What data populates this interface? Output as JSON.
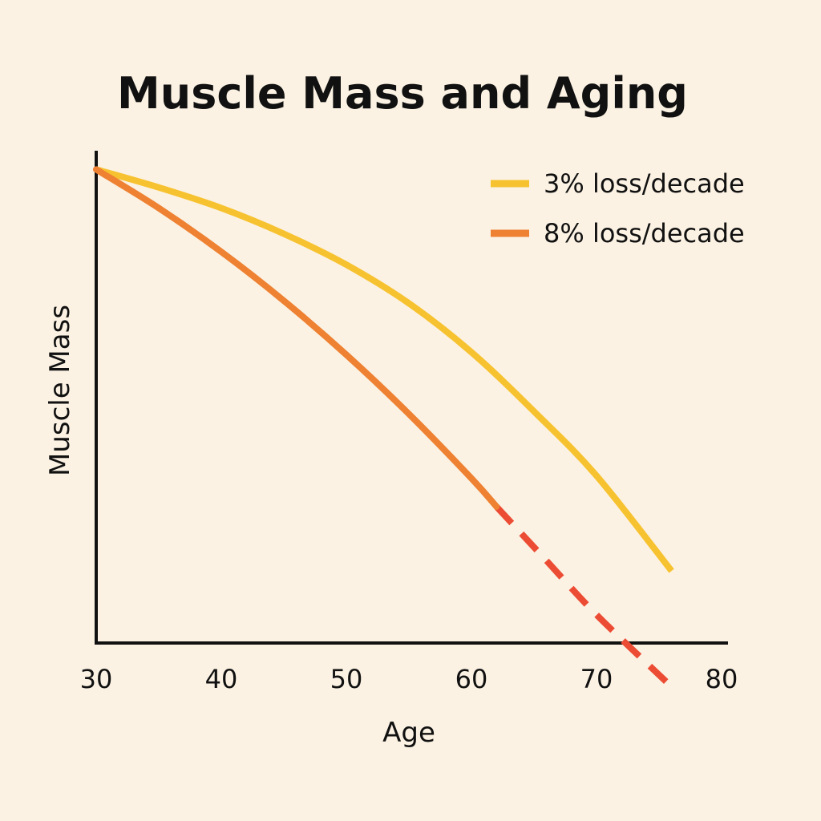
{
  "chart_data": {
    "type": "line",
    "title": "Muscle Mass and Aging",
    "xlabel": "Age",
    "ylabel": "Muscle Mass",
    "xlim": [
      30,
      80
    ],
    "ylim": [
      0,
      100
    ],
    "xticks": [
      "30",
      "40",
      "50",
      "60",
      "70",
      "80"
    ],
    "grid": false,
    "legend_position": "top-right",
    "series": [
      {
        "name": "3% loss/decade",
        "color": "#F7C230",
        "style": "solid",
        "x": [
          30,
          35,
          40,
          45,
          50,
          55,
          60,
          65,
          70,
          76
        ],
        "y": [
          92,
          88.5,
          84.5,
          79.5,
          73.5,
          66,
          56.5,
          45,
          32.5,
          14
        ]
      },
      {
        "name": "8% loss/decade",
        "color": "#EE8132",
        "dash_color": "#EC4C33",
        "style": "solid-then-dashed",
        "dash_from_x": 62,
        "x": [
          30,
          35,
          40,
          45,
          50,
          55,
          60,
          62,
          66,
          70,
          76
        ],
        "y": [
          92,
          84.5,
          76,
          66.5,
          56,
          44.5,
          32,
          26.5,
          16,
          5.5,
          -8.5
        ]
      }
    ]
  }
}
